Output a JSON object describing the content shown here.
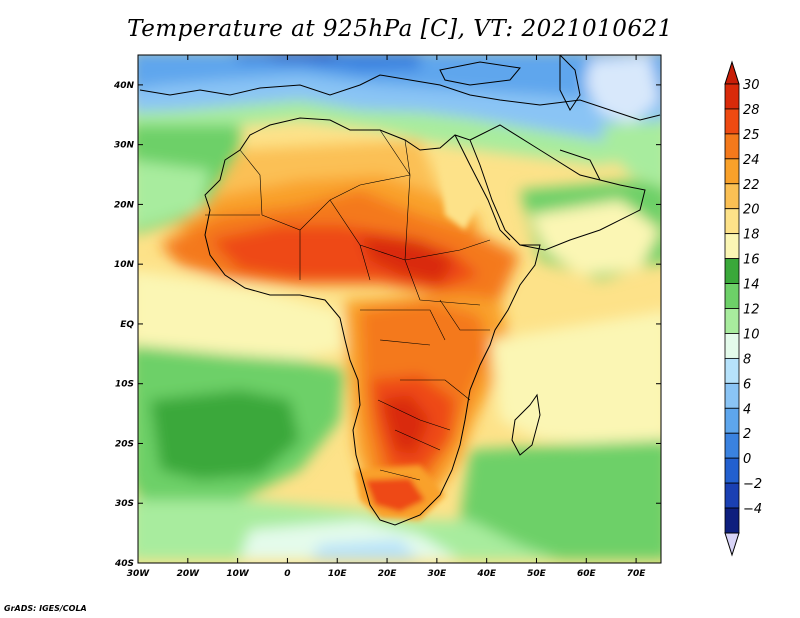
{
  "title": "Temperature at 925hPa [C], VT: 2021010621",
  "credit": "GrADS: IGES/COLA",
  "map": {
    "lon_range": [
      -30,
      75
    ],
    "lat_range": [
      -40,
      45
    ],
    "lat_ticks": [
      {
        "lat": 40,
        "label": "40N"
      },
      {
        "lat": 30,
        "label": "30N"
      },
      {
        "lat": 20,
        "label": "20N"
      },
      {
        "lat": 10,
        "label": "10N"
      },
      {
        "lat": 0,
        "label": "EQ"
      },
      {
        "lat": -10,
        "label": "10S"
      },
      {
        "lat": -20,
        "label": "20S"
      },
      {
        "lat": -30,
        "label": "30S"
      },
      {
        "lat": -40,
        "label": "40S"
      }
    ],
    "lon_ticks": [
      {
        "lon": -30,
        "label": "30W"
      },
      {
        "lon": -20,
        "label": "20W"
      },
      {
        "lon": -10,
        "label": "10W"
      },
      {
        "lon": 0,
        "label": "0"
      },
      {
        "lon": 10,
        "label": "10E"
      },
      {
        "lon": 20,
        "label": "20E"
      },
      {
        "lon": 30,
        "label": "30E"
      },
      {
        "lon": 40,
        "label": "40E"
      },
      {
        "lon": 50,
        "label": "50E"
      },
      {
        "lon": 60,
        "label": "60E"
      },
      {
        "lon": 70,
        "label": "70E"
      }
    ]
  },
  "colorbar": {
    "unit": "C",
    "levels": [
      {
        "label": "30",
        "color": "#d92a0a"
      },
      {
        "label": "28",
        "color": "#ee4a12"
      },
      {
        "label": "25",
        "color": "#f4791b"
      },
      {
        "label": "24",
        "color": "#f9a12a"
      },
      {
        "label": "22",
        "color": "#fbc054"
      },
      {
        "label": "20",
        "color": "#fde289"
      },
      {
        "label": "18",
        "color": "#fbf6b4"
      },
      {
        "label": "16",
        "color": "#3aa83a"
      },
      {
        "label": "14",
        "color": "#6dd068"
      },
      {
        "label": "12",
        "color": "#a8ec9e"
      },
      {
        "label": "10",
        "color": "#e4fbeb"
      },
      {
        "label": "8",
        "color": "#b6e2fb"
      },
      {
        "label": "6",
        "color": "#8ac4f5"
      },
      {
        "label": "4",
        "color": "#5ea6ed"
      },
      {
        "label": "2",
        "color": "#3a82e0"
      },
      {
        "label": "0",
        "color": "#2360cf"
      },
      {
        "label": "−2",
        "color": "#1a40b3"
      },
      {
        "label": "−4",
        "color": "#0e1f7e"
      }
    ],
    "bottom_color": "#d8d4f7",
    "top_color": "#c81e08"
  }
}
